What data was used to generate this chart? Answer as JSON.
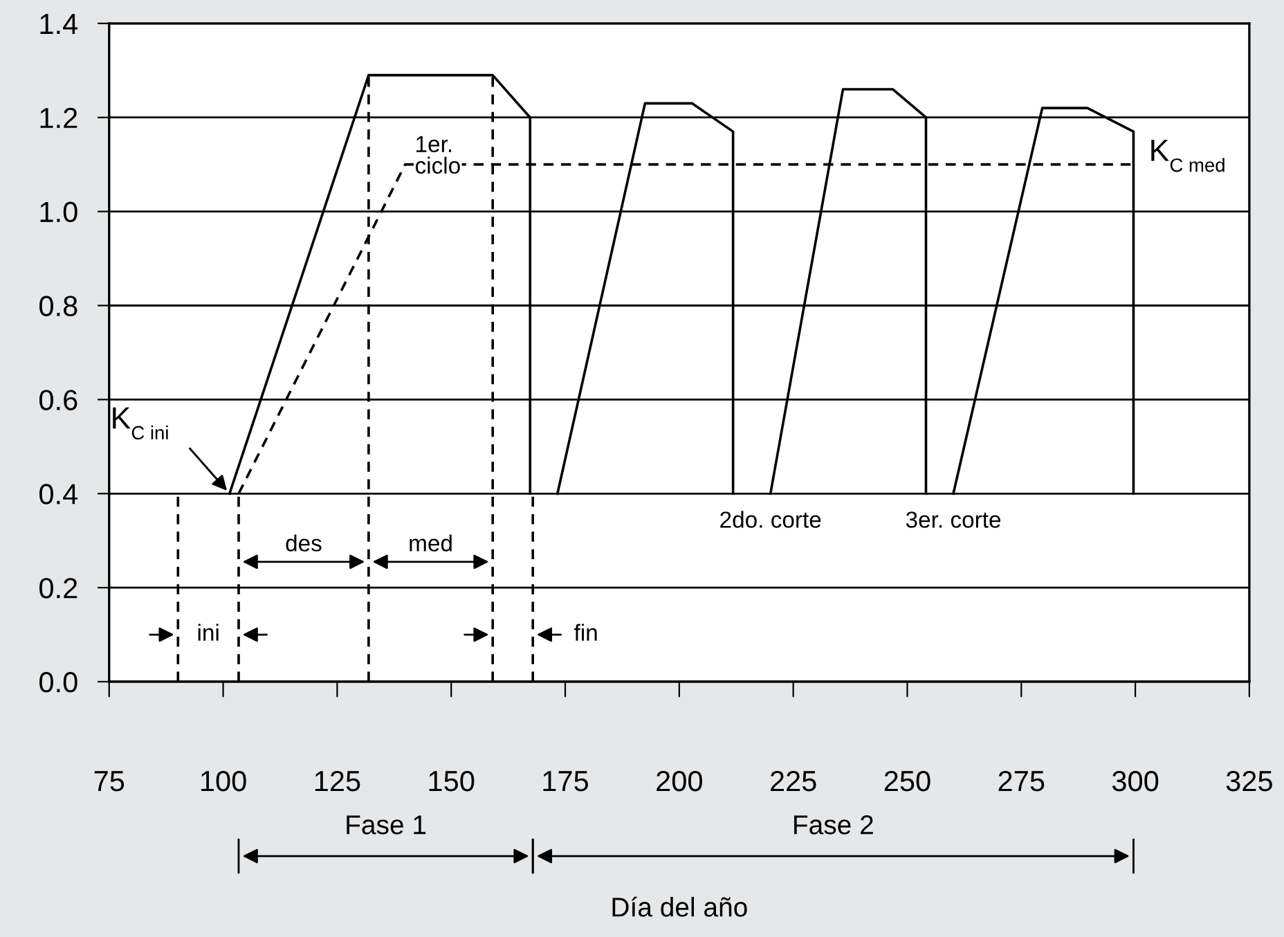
{
  "chart_data": {
    "type": "line",
    "xlabel": "Día del año",
    "xlim": [
      75,
      325
    ],
    "xticks": [
      75,
      100,
      125,
      150,
      175,
      200,
      225,
      250,
      275,
      300,
      325
    ],
    "ylim": [
      0,
      1.4
    ],
    "yticks": [
      {
        "value": 0,
        "label": "0.0"
      },
      0.2,
      0.4,
      0.6,
      0.8,
      {
        "value": 1,
        "label": "1.0"
      },
      1.2,
      1.4
    ],
    "grid": "y",
    "marker": "none",
    "series": [
      {
        "color": "#000000",
        "line_style": "solid",
        "x": [
          101.4,
          131.9,
          159.1,
          167.3,
          167.3,
          null,
          173.3,
          192.5,
          202.8,
          211.8,
          211.8,
          null,
          220,
          235.9,
          246.8,
          254.1,
          254.1,
          null,
          260.1,
          279.6,
          289.5,
          299.6,
          299.6
        ],
        "values": [
          0.4,
          1.29,
          1.29,
          1.2,
          0.4,
          null,
          0.4,
          1.23,
          1.23,
          1.17,
          0.4,
          null,
          0.4,
          1.26,
          1.26,
          1.2,
          0.4,
          null,
          0.4,
          1.22,
          1.22,
          1.17,
          0.4
        ]
      },
      {
        "color": "#000000",
        "line_style": "dashed",
        "x": [
          103.4,
          139.9,
          299.6
        ],
        "values": [
          0.4,
          1.1,
          1.1
        ]
      },
      {
        "color": "#000000",
        "line_style": "dashed",
        "x": [
          90.1,
          90.1
        ],
        "values": [
          0,
          0.4
        ]
      },
      {
        "color": "#000000",
        "line_style": "dashed",
        "x": [
          103.4,
          103.4
        ],
        "values": [
          0,
          0.4
        ]
      },
      {
        "color": "#000000",
        "line_style": "dashed",
        "x": [
          131.9,
          131.9
        ],
        "values": [
          0,
          1.29
        ]
      },
      {
        "color": "#000000",
        "line_style": "dashed",
        "x": [
          159.1,
          159.1
        ],
        "values": [
          0,
          1.29
        ]
      },
      {
        "color": "#000000",
        "line_style": "dashed",
        "x": [
          167.9,
          167.9
        ],
        "values": [
          0,
          0.4
        ]
      }
    ],
    "annotations": [
      {
        "text": "K$_{C ini}$",
        "x": 101.4,
        "y": 0.4
      },
      {
        "text": "K$_{C med}$",
        "x": 299.6,
        "y": 1.1
      },
      {
        "text": "1er.\nciclo",
        "x": 139.9,
        "y": 1.1
      },
      "ini",
      "des",
      "med",
      {
        "text": "fin",
        "x": 167.9,
        "y": 0.1
      },
      {
        "text": "2do. corte",
        "x": 220,
        "y": 0.4
      },
      {
        "text": "3er. corte",
        "x": 260.1,
        "y": 0.4
      },
      "Fase 1",
      "Fase 2"
    ]
  }
}
